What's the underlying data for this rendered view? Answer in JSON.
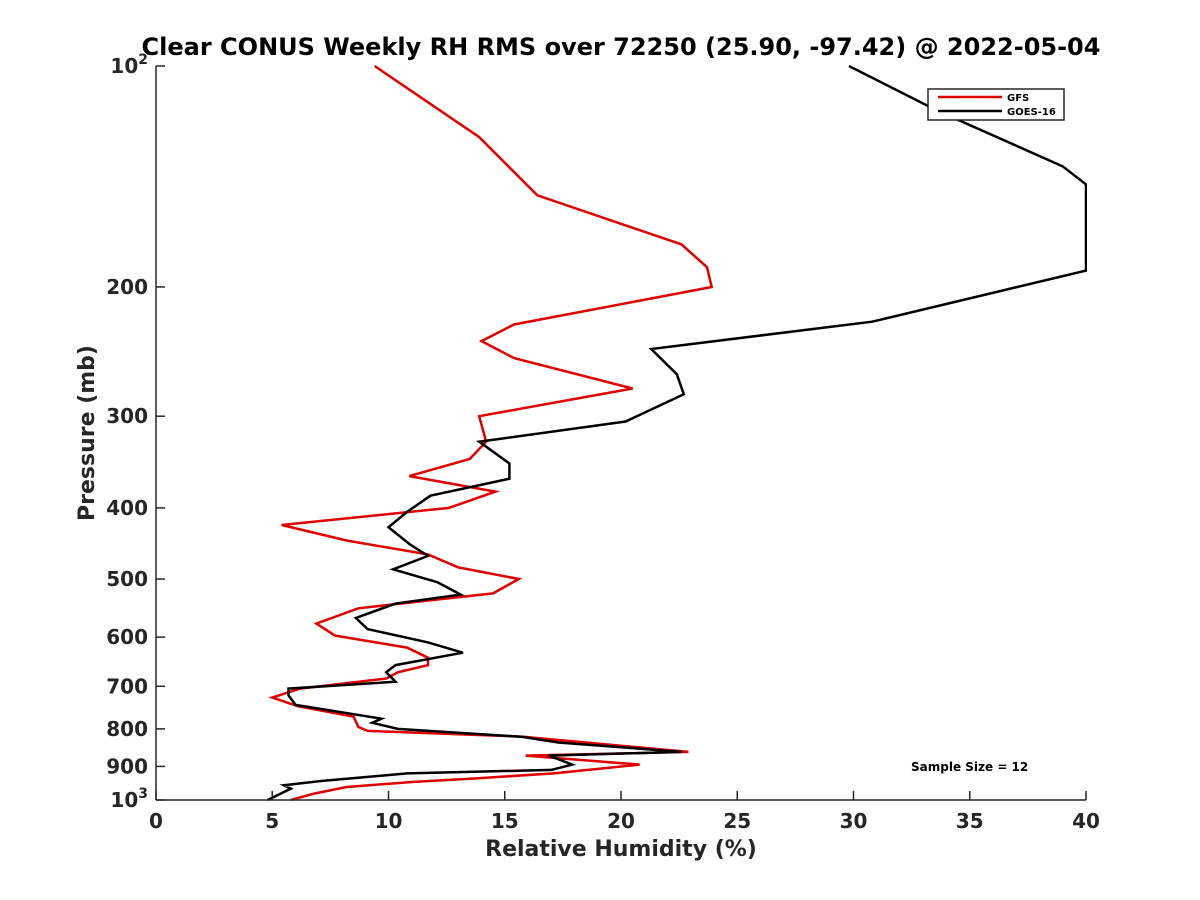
{
  "chart_data": {
    "type": "line",
    "title": "Clear CONUS Weekly RH RMS over 72250 (25.90, -97.42) @ 2022-05-04",
    "xlabel": "Relative Humidity (%)",
    "ylabel": "Pressure (mb)",
    "xlim": [
      0,
      40
    ],
    "ylim": [
      100,
      1000
    ],
    "yscale": "log",
    "y_reversed": true,
    "x_ticks": [
      0,
      5,
      10,
      15,
      20,
      25,
      30,
      35,
      40
    ],
    "x_tick_labels": [
      "0",
      "5",
      "10",
      "15",
      "20",
      "25",
      "30",
      "35",
      "40"
    ],
    "y_ticks": [
      100,
      200,
      300,
      400,
      500,
      600,
      700,
      800,
      900,
      1000
    ],
    "y_tick_labels": [
      {
        "base": "10",
        "exp": "2"
      },
      {
        "text": "200"
      },
      {
        "text": "300"
      },
      {
        "text": "400"
      },
      {
        "text": "500"
      },
      {
        "text": "600"
      },
      {
        "text": "700"
      },
      {
        "text": "800"
      },
      {
        "text": "900"
      },
      {
        "base": "10",
        "exp": "3"
      }
    ],
    "grid": false,
    "legend_position": "top-right",
    "annotation": "Sample Size = 12",
    "series": [
      {
        "name": "GFS",
        "color": "#e00000",
        "points": [
          [
            9.4,
            100
          ],
          [
            13.9,
            125
          ],
          [
            16.4,
            150
          ],
          [
            22.6,
            175
          ],
          [
            23.7,
            188
          ],
          [
            23.9,
            200
          ],
          [
            15.4,
            225
          ],
          [
            14.0,
            237
          ],
          [
            15.4,
            250
          ],
          [
            20.5,
            275
          ],
          [
            13.9,
            300
          ],
          [
            14.2,
            325
          ],
          [
            13.5,
            343
          ],
          [
            10.9,
            362
          ],
          [
            14.6,
            380
          ],
          [
            12.6,
            400
          ],
          [
            5.4,
            422
          ],
          [
            8.2,
            443
          ],
          [
            11.7,
            463
          ],
          [
            13.0,
            482
          ],
          [
            15.6,
            500
          ],
          [
            14.5,
            523
          ],
          [
            8.7,
            548
          ],
          [
            6.9,
            575
          ],
          [
            7.7,
            597
          ],
          [
            10.8,
            620
          ],
          [
            11.7,
            640
          ],
          [
            11.7,
            655
          ],
          [
            10.4,
            670
          ],
          [
            9.9,
            683
          ],
          [
            6.2,
            705
          ],
          [
            5.0,
            725
          ],
          [
            6.1,
            745
          ],
          [
            8.5,
            770
          ],
          [
            8.7,
            795
          ],
          [
            9.1,
            805
          ],
          [
            15.8,
            820
          ],
          [
            22.9,
            860
          ],
          [
            15.9,
            870
          ],
          [
            20.8,
            895
          ],
          [
            17.1,
            920
          ],
          [
            13.6,
            935
          ],
          [
            11.0,
            945
          ],
          [
            8.2,
            960
          ],
          [
            6.8,
            980
          ],
          [
            5.8,
            1000
          ]
        ]
      },
      {
        "name": "GOES-16",
        "color": "#000000",
        "points": [
          [
            29.8,
            100
          ],
          [
            33.6,
            115
          ],
          [
            39.0,
            137
          ],
          [
            40.0,
            145
          ],
          [
            40.0,
            190
          ],
          [
            30.8,
            223
          ],
          [
            21.3,
            243
          ],
          [
            22.4,
            263
          ],
          [
            22.7,
            280
          ],
          [
            20.2,
            305
          ],
          [
            13.9,
            325
          ],
          [
            15.2,
            348
          ],
          [
            15.2,
            365
          ],
          [
            11.8,
            385
          ],
          [
            10.8,
            405
          ],
          [
            10.0,
            425
          ],
          [
            10.9,
            448
          ],
          [
            11.7,
            465
          ],
          [
            10.2,
            485
          ],
          [
            12.1,
            505
          ],
          [
            13.1,
            525
          ],
          [
            10.3,
            540
          ],
          [
            8.6,
            565
          ],
          [
            9.1,
            585
          ],
          [
            11.7,
            610
          ],
          [
            13.2,
            630
          ],
          [
            10.3,
            655
          ],
          [
            9.9,
            670
          ],
          [
            10.3,
            690
          ],
          [
            5.7,
            705
          ],
          [
            5.7,
            720
          ],
          [
            6.0,
            742
          ],
          [
            9.7,
            775
          ],
          [
            9.3,
            785
          ],
          [
            10.4,
            800
          ],
          [
            15.7,
            820
          ],
          [
            17.3,
            835
          ],
          [
            22.6,
            860
          ],
          [
            16.9,
            870
          ],
          [
            17.9,
            895
          ],
          [
            17.0,
            910
          ],
          [
            10.8,
            920
          ],
          [
            7.1,
            942
          ],
          [
            5.5,
            955
          ],
          [
            5.8,
            965
          ],
          [
            4.8,
            1000
          ]
        ]
      }
    ]
  }
}
